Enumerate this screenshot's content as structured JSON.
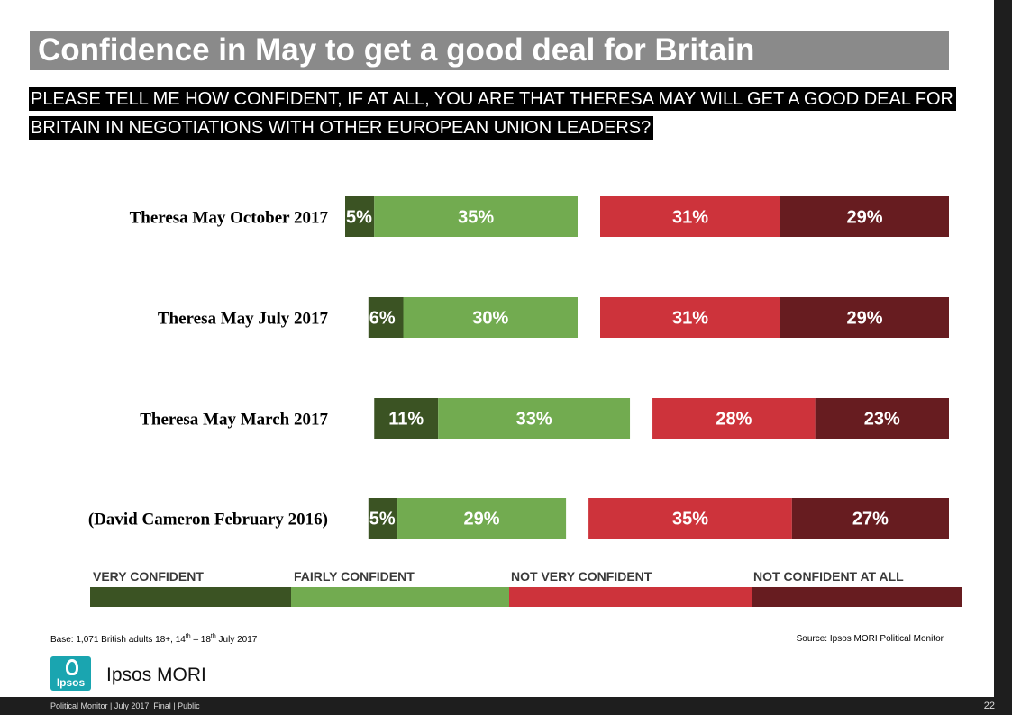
{
  "title": "Confidence in May to get a good deal for Britain",
  "question": {
    "line1": "PLEASE TELL ME HOW CONFIDENT, IF AT ALL, YOU ARE THAT THERESA MAY WILL GET A GOOD DEAL FOR",
    "line2": "BRITAIN IN NEGOTIATIONS WITH OTHER EUROPEAN UNION LEADERS?"
  },
  "chart_data": {
    "type": "bar",
    "orientation": "horizontal-diverging",
    "categories": [
      "Theresa May October 2017",
      "Theresa May July 2017",
      "Theresa May March 2017",
      "(David Cameron February 2016)"
    ],
    "series": [
      {
        "name": "VERY CONFIDENT",
        "color": "#3b5323",
        "values": [
          5,
          6,
          11,
          5
        ]
      },
      {
        "name": "FAIRLY CONFIDENT",
        "color": "#72ab50",
        "values": [
          35,
          30,
          33,
          29
        ]
      },
      {
        "name": "NOT VERY CONFIDENT",
        "color": "#cd333b",
        "values": [
          31,
          31,
          28,
          35
        ]
      },
      {
        "name": "NOT CONFIDENT AT ALL",
        "color": "#671c20",
        "values": [
          29,
          29,
          23,
          27
        ]
      }
    ],
    "legend_position": "bottom"
  },
  "notes": {
    "base": "Base: 1,071 British adults 18+, 14th – 18th July 2017",
    "source": "Source: Ipsos MORI Political Monitor"
  },
  "brand": {
    "logo_mark": "Ipsos",
    "logo_text": "Ipsos MORI"
  },
  "footer": {
    "text": "Political Monitor | July 2017| Final | Public",
    "page": "22"
  }
}
